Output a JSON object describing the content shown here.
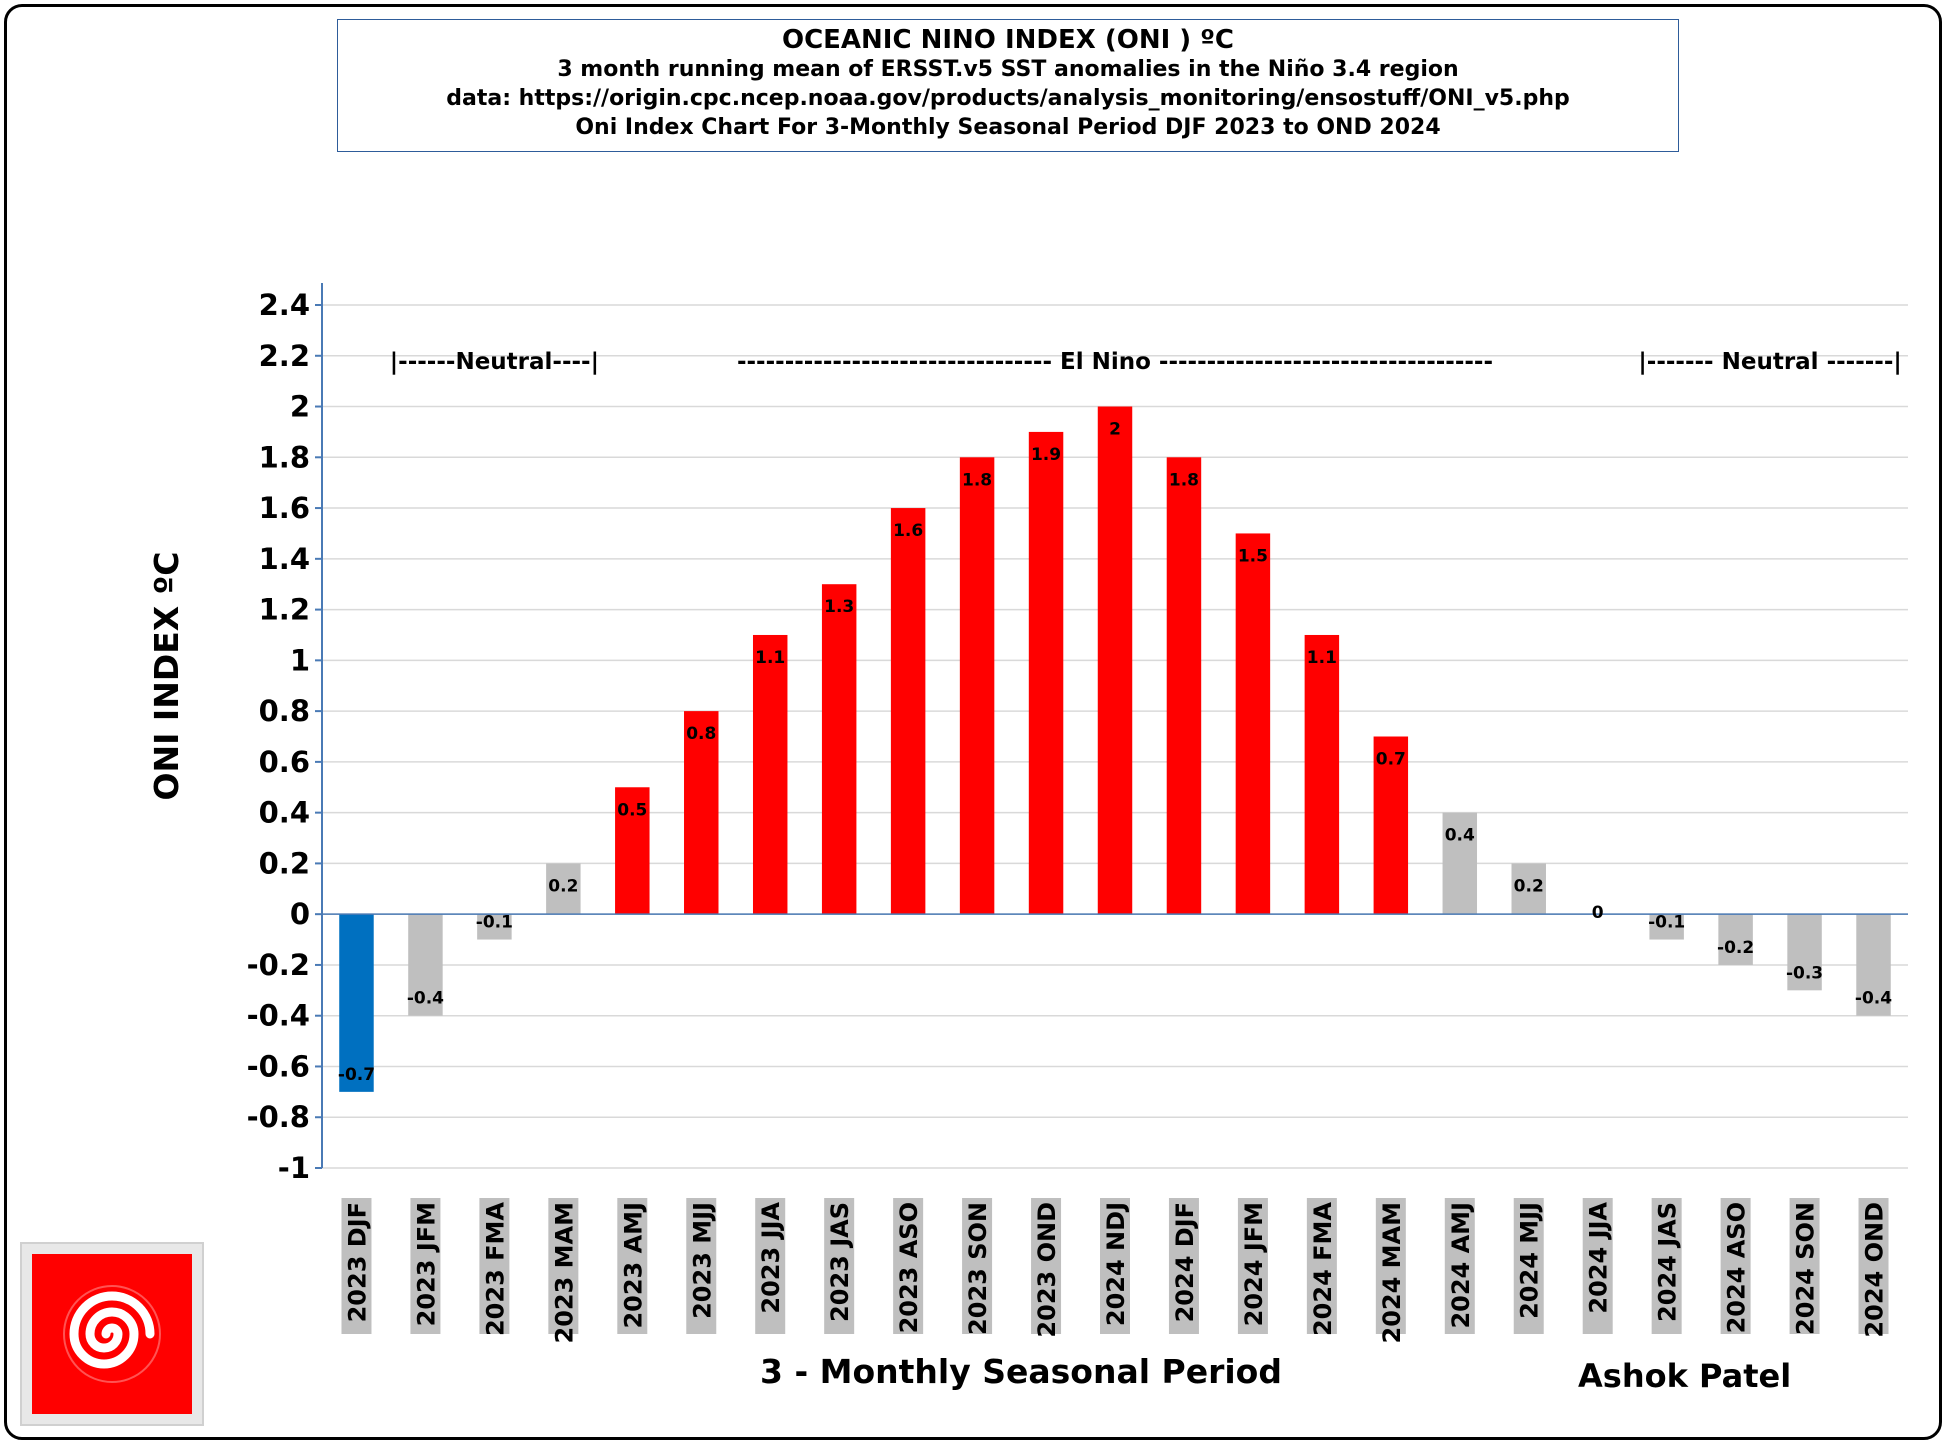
{
  "title": {
    "main": "OCEANIC NINO INDEX (ONI ) ºC",
    "line2": "3 month running mean of ERSST.v5 SST anomalies in the Niño 3.4 region",
    "line3": "data: https://origin.cpc.ncep.noaa.gov/products/analysis_monitoring/ensostuff/ONI_v5.php",
    "line4": "Oni Index Chart For 3-Monthly Seasonal Period DJF 2023 to OND 2024"
  },
  "author": "Ashok Patel",
  "colors": {
    "elnino": "#ff0000",
    "lanina": "#0070c0",
    "neutral": "#bfbfbf",
    "grid": "#d9d9d9",
    "axis": "#4a7ab5"
  },
  "chart_data": {
    "type": "bar",
    "xlabel": "3 - Monthly Seasonal Period",
    "ylabel": "ONI INDEX ºC",
    "ylim": [
      -1,
      2.4
    ],
    "yticks": [
      "-1",
      "-0.8",
      "-0.6",
      "-0.4",
      "-0.2",
      "0",
      "0.2",
      "0.4",
      "0.6",
      "0.8",
      "1",
      "1.2",
      "1.4",
      "1.6",
      "1.8",
      "2",
      "2.2",
      "2.4"
    ],
    "grid": true,
    "categories": [
      "2023 DJF",
      "2023 JFM",
      "2023 FMA",
      "2023 MAM",
      "2023 AMJ",
      "2023 MJJ",
      "2023 JJA",
      "2023 JAS",
      "2023 ASO",
      "2023 SON",
      "2023 OND",
      "2024 NDJ",
      "2024 DJF",
      "2024 JFM",
      "2024 FMA",
      "2024 MAM",
      "2024 AMJ",
      "2024 MJJ",
      "2024 JJA",
      "2024 JAS",
      "2024 ASO",
      "2024 SON",
      "2024 OND"
    ],
    "values": [
      -0.7,
      -0.4,
      -0.1,
      0.2,
      0.5,
      0.8,
      1.1,
      1.3,
      1.6,
      1.8,
      1.9,
      2,
      1.8,
      1.5,
      1.1,
      0.7,
      0.4,
      0.2,
      0,
      -0.1,
      -0.2,
      -0.3,
      -0.4
    ],
    "data_labels": [
      "-0.7",
      "-0.4",
      "-0.1",
      "0.2",
      "0.5",
      "0.8",
      "1.1",
      "1.3",
      "1.6",
      "1.8",
      "1.9",
      "2",
      "1.8",
      "1.5",
      "1.1",
      "0.7",
      "0.4",
      "0.2",
      "0",
      "-0.1",
      "-0.2",
      "-0.3",
      "-0.4"
    ],
    "phases": [
      "lanina",
      "neutral",
      "neutral",
      "neutral",
      "elnino",
      "elnino",
      "elnino",
      "elnino",
      "elnino",
      "elnino",
      "elnino",
      "elnino",
      "elnino",
      "elnino",
      "elnino",
      "elnino",
      "neutral",
      "neutral",
      "neutral",
      "neutral",
      "neutral",
      "neutral",
      "neutral"
    ],
    "annotations": [
      {
        "text": "|------Neutral----|",
        "y": 2.18,
        "center_category": 2
      },
      {
        "text": "---------------------------------  El Nino  -----------------------------------",
        "y": 2.18,
        "center_category": 11
      },
      {
        "text": "|------- Neutral -------|",
        "y": 2.18,
        "center_category": 20.5
      }
    ]
  }
}
